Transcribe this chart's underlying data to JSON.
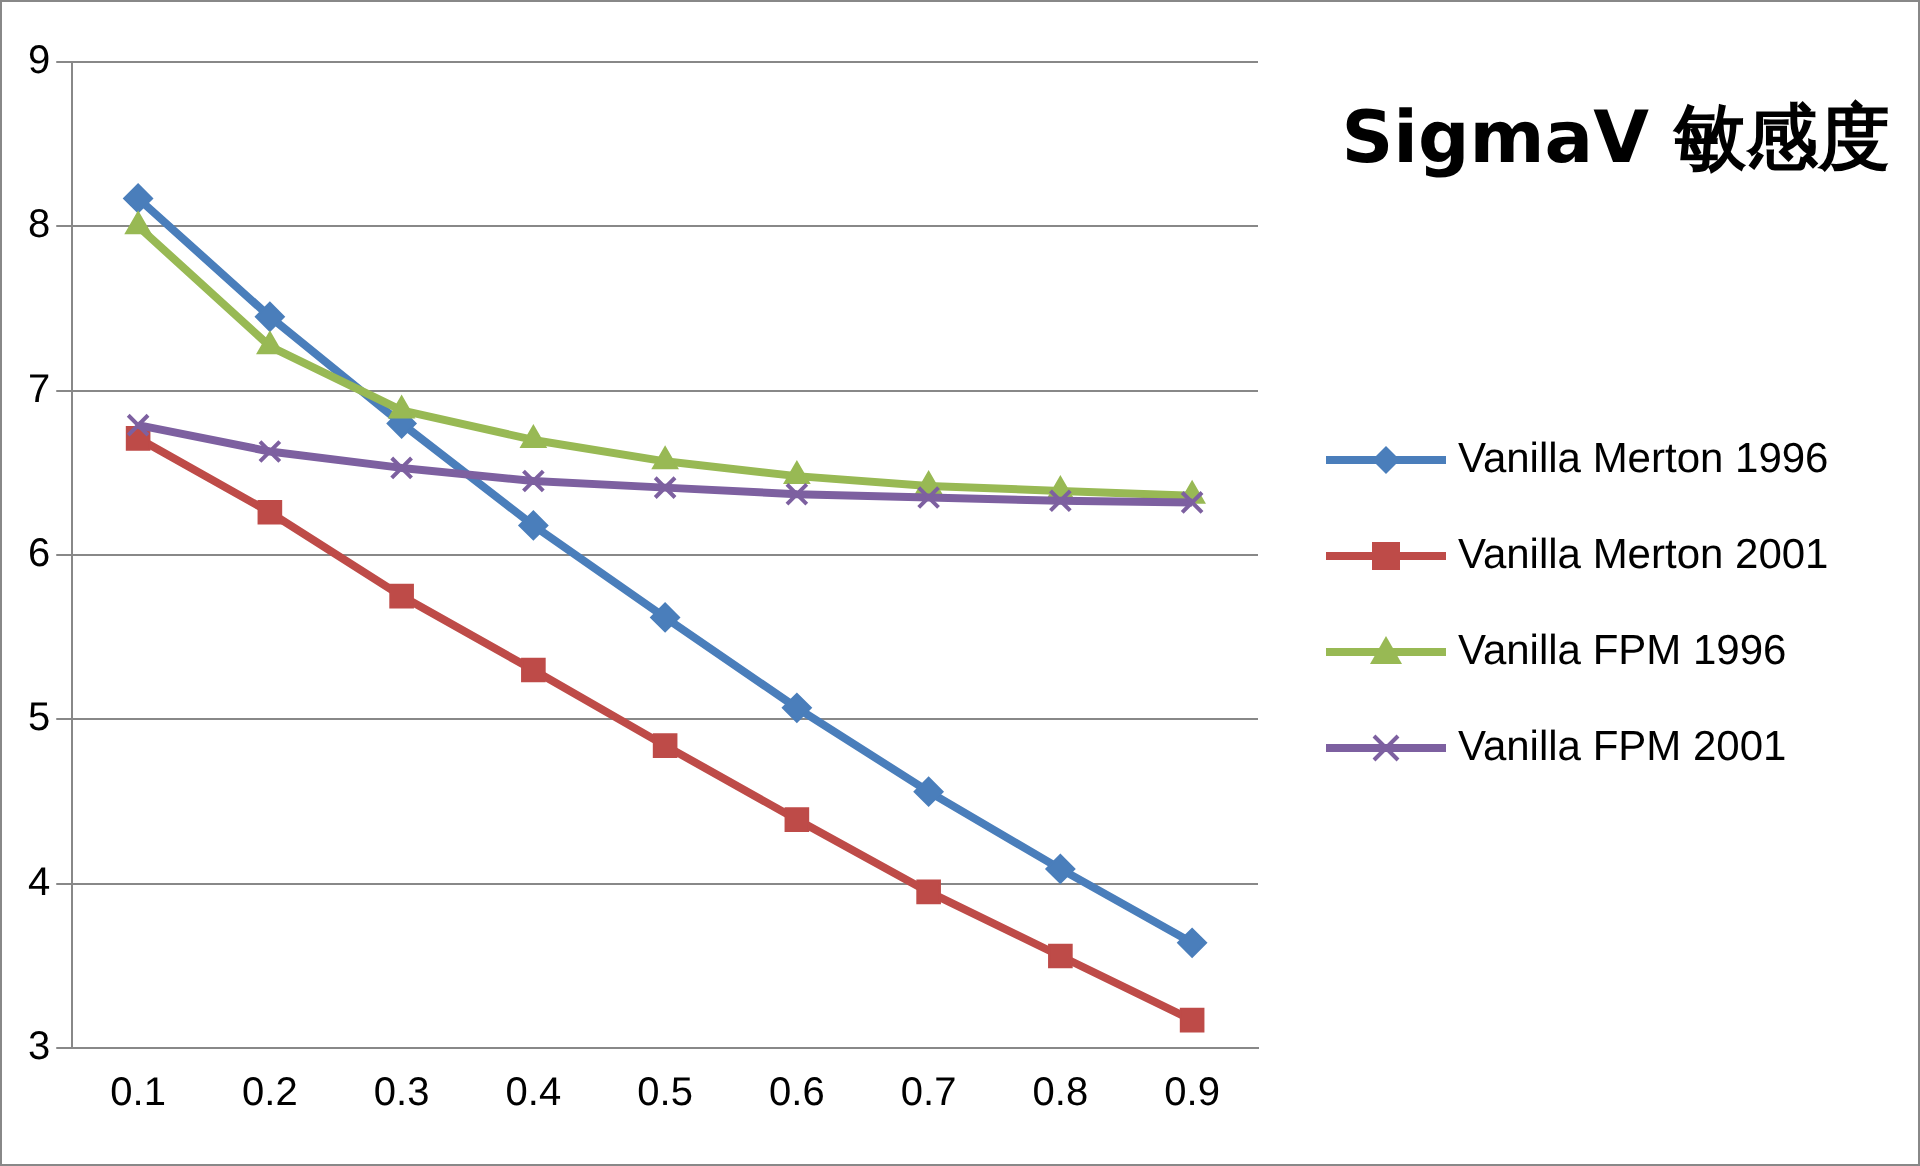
{
  "chart_data": {
    "type": "line",
    "title": "SigmaV 敏感度",
    "categories": [
      "0.1",
      "0.2",
      "0.3",
      "0.4",
      "0.5",
      "0.6",
      "0.7",
      "0.8",
      "0.9"
    ],
    "series": [
      {
        "name": "Vanilla Merton 1996",
        "color": "#4a7ebb",
        "marker": "diamond",
        "values": [
          8.17,
          7.45,
          6.8,
          6.18,
          5.62,
          5.07,
          4.56,
          4.09,
          3.64
        ]
      },
      {
        "name": "Vanilla Merton 2001",
        "color": "#be4b48",
        "marker": "square",
        "values": [
          6.71,
          6.26,
          5.75,
          5.3,
          4.84,
          4.39,
          3.95,
          3.56,
          3.17
        ]
      },
      {
        "name": "Vanilla FPM 1996",
        "color": "#98b954",
        "marker": "triangle",
        "values": [
          8.0,
          7.27,
          6.88,
          6.7,
          6.57,
          6.48,
          6.42,
          6.39,
          6.36
        ]
      },
      {
        "name": "Vanilla FPM 2001",
        "color": "#7d60a0",
        "marker": "cross",
        "values": [
          6.79,
          6.63,
          6.53,
          6.45,
          6.41,
          6.37,
          6.35,
          6.33,
          6.32
        ]
      }
    ],
    "ylim": [
      3,
      9
    ],
    "yticks": [
      3,
      4,
      5,
      6,
      7,
      8,
      9
    ],
    "grid": "y",
    "legend": "right",
    "line_style": "solid"
  }
}
